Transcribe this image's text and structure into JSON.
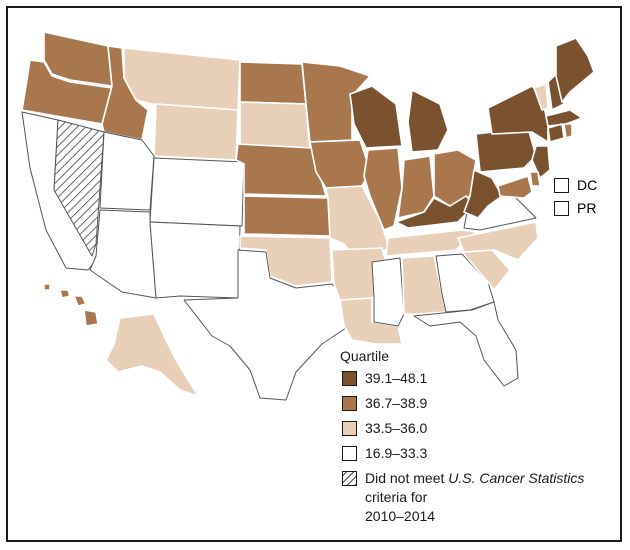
{
  "colors": {
    "q1": "#7a5230",
    "q2": "#a9774e",
    "q3": "#e7cfb8",
    "q4": "#ffffff",
    "hatch": "#444444",
    "border": "#1a1a1a"
  },
  "legend": {
    "title": "Quartile",
    "items": [
      {
        "label": "39.1–48.1"
      },
      {
        "label": "36.7–38.9"
      },
      {
        "label": "33.5–36.0"
      },
      {
        "label": "16.9–33.3"
      }
    ],
    "no_data": {
      "part1": "Did not meet ",
      "italic1": "U.S. Cancer Statistics",
      "part2": " criteria for",
      "part3": "2010–2014"
    }
  },
  "insets": {
    "dc": "DC",
    "pr": "PR"
  },
  "states": {
    "WA": "q2",
    "OR": "q2",
    "ID": "q2",
    "NV": "nodata",
    "CA": "q4",
    "MT": "q3",
    "WY": "q3",
    "UT": "q4",
    "CO": "q4",
    "AZ": "q4",
    "NM": "q4",
    "ND": "q2",
    "SD": "q3",
    "NE": "q2",
    "KS": "q2",
    "OK": "q3",
    "TX": "q4",
    "MN": "q2",
    "IA": "q2",
    "MO": "q3",
    "AR": "q3",
    "LA": "q3",
    "WI": "q1",
    "IL": "q2",
    "MI": "q1",
    "IN": "q2",
    "OH": "q2",
    "KY": "q1",
    "TN": "q3",
    "MS": "q4",
    "AL": "q3",
    "GA": "q4",
    "FL": "q4",
    "SC": "q3",
    "NC": "q3",
    "VA": "q4",
    "WV": "q1",
    "PA": "q1",
    "NY": "q1",
    "VT": "q3",
    "NH": "q1",
    "ME": "q1",
    "MA": "q1",
    "CT": "q1",
    "RI": "q2",
    "NJ": "q1",
    "DE": "q2",
    "MD": "q2",
    "AK": "q3",
    "HI": "q2",
    "DC": "q4",
    "PR": "q4"
  }
}
